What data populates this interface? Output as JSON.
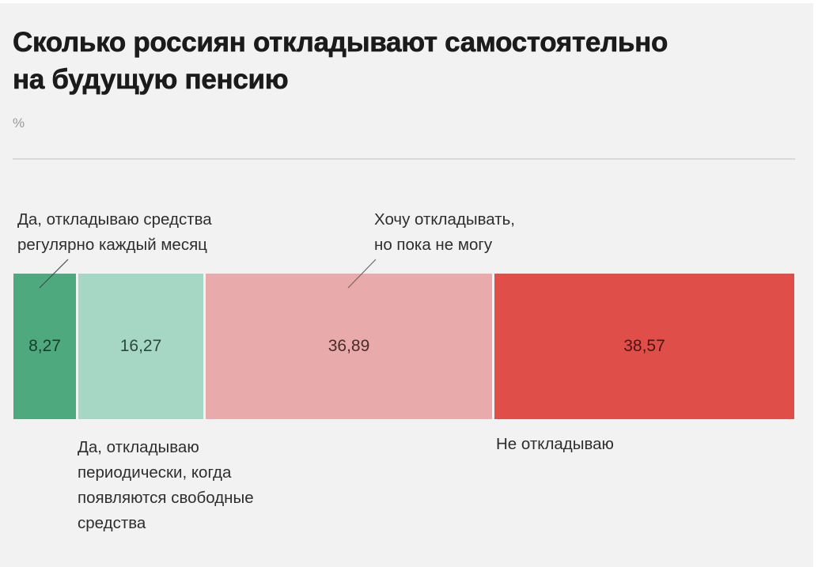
{
  "header": {
    "title_line1": "Сколько россиян откладывают самостоятельно",
    "title_line2": "на будущую пенсию",
    "unit": "%"
  },
  "labels": {
    "regular": "Да, откладываю средства\nрегулярно каждый месяц",
    "periodic": "Да, откладываю\nпериодически, когда\nпоявляются свободные\nсредства",
    "want": "Хочу откладывать,\nно пока не могу",
    "none": "Не откладываю"
  },
  "colors": {
    "regular": "#4fa97e",
    "periodic": "#a6d6c4",
    "want": "#e8aaaa",
    "none": "#e04e49",
    "regular_text": "#173d2b",
    "periodic_text": "#2b4a3f",
    "want_text": "#4a2c2c",
    "none_text": "#4d1412"
  },
  "chart_data": {
    "type": "bar",
    "orientation": "horizontal",
    "stacked": true,
    "title": "Сколько россиян откладывают самостоятельно на будущую пенсию",
    "subtitle": "%",
    "xlabel": "",
    "ylabel": "",
    "categories": [
      "Да, откладываю средства регулярно каждый месяц",
      "Да, откладываю периодически, когда появляются свободные средства",
      "Хочу откладывать, но пока не могу",
      "Не откладываю"
    ],
    "values": [
      8.27,
      16.27,
      36.89,
      38.57
    ],
    "value_labels": [
      "8,27",
      "16,27",
      "36,89",
      "38,57"
    ],
    "colors": [
      "#4fa97e",
      "#a6d6c4",
      "#e8aaaa",
      "#e04e49"
    ],
    "xlim": [
      0,
      100
    ],
    "grid": false,
    "legend": "direct labels (above/below segments)"
  }
}
